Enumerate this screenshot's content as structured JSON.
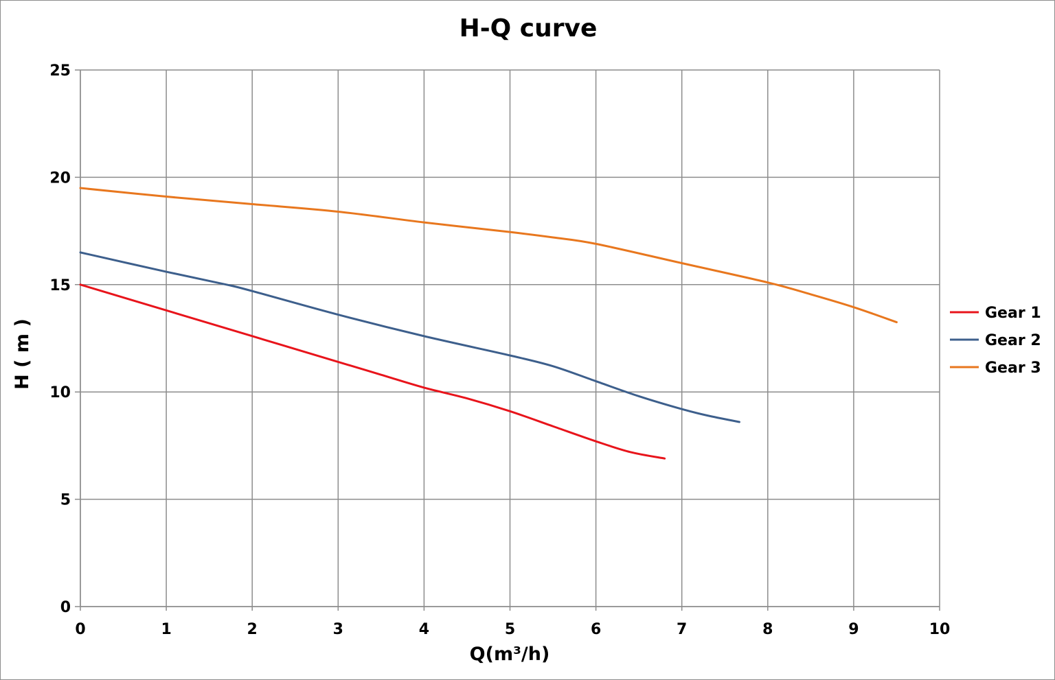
{
  "chart_data": {
    "type": "line",
    "title": "H-Q  curve",
    "xlabel": "Q(m³/h)",
    "ylabel": "H ( m )",
    "xlim": [
      0,
      10
    ],
    "ylim": [
      0,
      25
    ],
    "x_ticks": [
      "0",
      "1",
      "2",
      "3",
      "4",
      "5",
      "6",
      "7",
      "8",
      "9",
      "10"
    ],
    "y_ticks": [
      "0",
      "5",
      "10",
      "15",
      "20",
      "25"
    ],
    "x_tick_values": [
      0,
      1,
      2,
      3,
      4,
      5,
      6,
      7,
      8,
      9,
      10
    ],
    "y_tick_values": [
      0,
      5,
      10,
      15,
      20,
      25
    ],
    "grid": true,
    "legend_position": "right",
    "series": [
      {
        "name": "Gear 1",
        "color": "#e8141b",
        "x": [
          0,
          1,
          2,
          3,
          3.5,
          4,
          4.5,
          5,
          5.5,
          6,
          6.4,
          6.8
        ],
        "y": [
          15.0,
          13.8,
          12.6,
          11.4,
          10.8,
          10.2,
          9.7,
          9.1,
          8.4,
          7.7,
          7.2,
          6.9
        ]
      },
      {
        "name": "Gear 2",
        "color": "#3d5f8c",
        "x": [
          0,
          1,
          1.7,
          2,
          3,
          4,
          5,
          5.5,
          6,
          6.5,
          7,
          7.3,
          7.67
        ],
        "y": [
          16.5,
          15.6,
          15.0,
          14.7,
          13.6,
          12.6,
          11.7,
          11.2,
          10.5,
          9.8,
          9.2,
          8.9,
          8.6
        ]
      },
      {
        "name": "Gear 3",
        "color": "#e8771e",
        "x": [
          0,
          1,
          2,
          3,
          4,
          5,
          5.5,
          6,
          7,
          8,
          8.5,
          9,
          9.5
        ],
        "y": [
          19.5,
          19.1,
          18.75,
          18.4,
          17.9,
          17.45,
          17.2,
          16.9,
          16.0,
          15.1,
          14.55,
          13.95,
          13.25
        ]
      }
    ]
  }
}
